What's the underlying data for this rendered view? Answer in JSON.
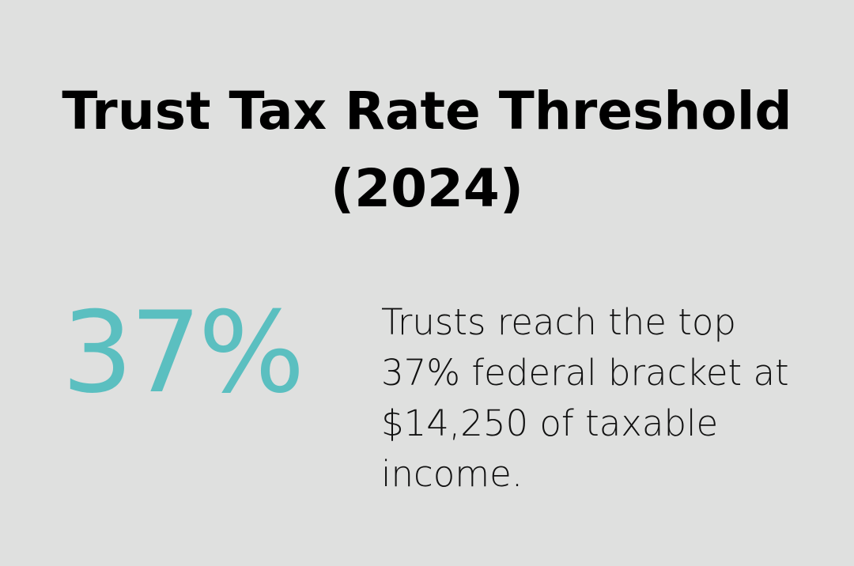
{
  "title": "Trust Tax Rate Threshold (2024)",
  "stat": "37%",
  "description": "Trusts reach the top 37% federal bracket at $14,250 of taxable income."
}
